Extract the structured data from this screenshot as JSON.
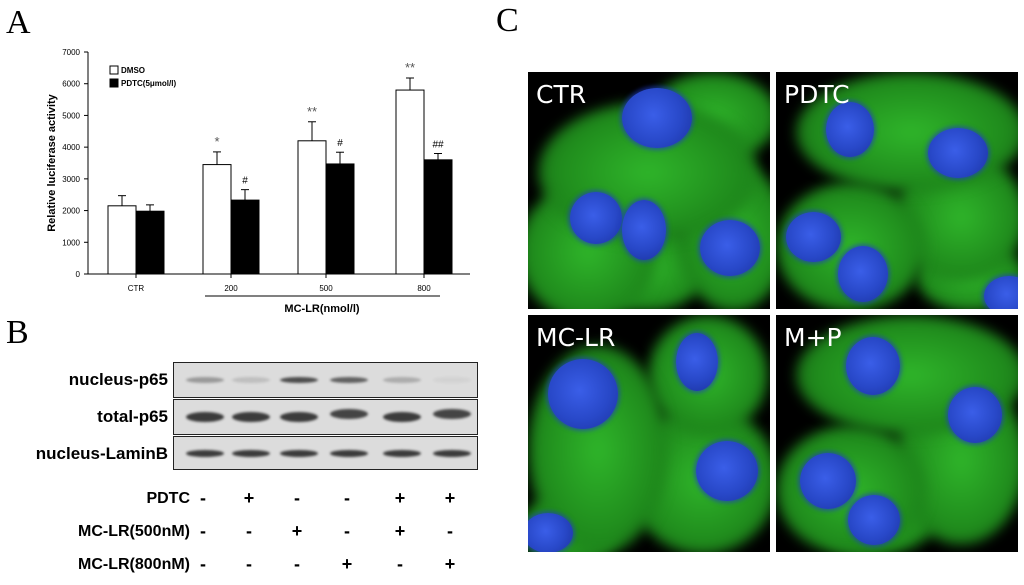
{
  "panels": {
    "a": "A",
    "b": "B",
    "c": "C"
  },
  "chart_data": {
    "type": "bar",
    "ylabel": "Relative luciferase activity",
    "ylim": [
      0,
      7000
    ],
    "yticks": [
      "0",
      "1000",
      "2000",
      "3000",
      "4000",
      "5000",
      "6000",
      "7000"
    ],
    "categories": [
      "CTR",
      "200",
      "500",
      "800"
    ],
    "group_label": "MC-LR(nmol/l)",
    "legend_position": "top-left",
    "series": [
      {
        "name": "DMSO",
        "color": "#ffffff",
        "values": [
          2150,
          3450,
          4200,
          5800
        ],
        "errors": [
          320,
          400,
          600,
          380
        ],
        "annotations": [
          "",
          "*",
          "**",
          "**"
        ]
      },
      {
        "name": "PDTC(5μmol/l)",
        "color": "#000000",
        "values": [
          1980,
          2330,
          3470,
          3600
        ],
        "errors": [
          200,
          330,
          370,
          200
        ],
        "annotations": [
          "",
          "#",
          "#",
          "##"
        ]
      }
    ]
  },
  "western_blot": {
    "rows": [
      "nucleus-p65",
      "total-p65",
      "nucleus-LaminB"
    ],
    "treatments": [
      {
        "label": "PDTC",
        "signs": [
          "-",
          "+",
          "-",
          "-",
          "+",
          "+"
        ]
      },
      {
        "label": "MC-LR(500nM)",
        "signs": [
          "-",
          "-",
          "+",
          "-",
          "+",
          "-"
        ]
      },
      {
        "label": "MC-LR(800nM)",
        "signs": [
          "-",
          "-",
          "-",
          "+",
          "-",
          "+"
        ]
      }
    ]
  },
  "microscopy": {
    "panels": [
      "CTR",
      "PDTC",
      "MC-LR",
      "M+P"
    ],
    "stain_colors": {
      "cytoplasm": "#2fb52a",
      "nucleus": "#2848c8"
    }
  }
}
